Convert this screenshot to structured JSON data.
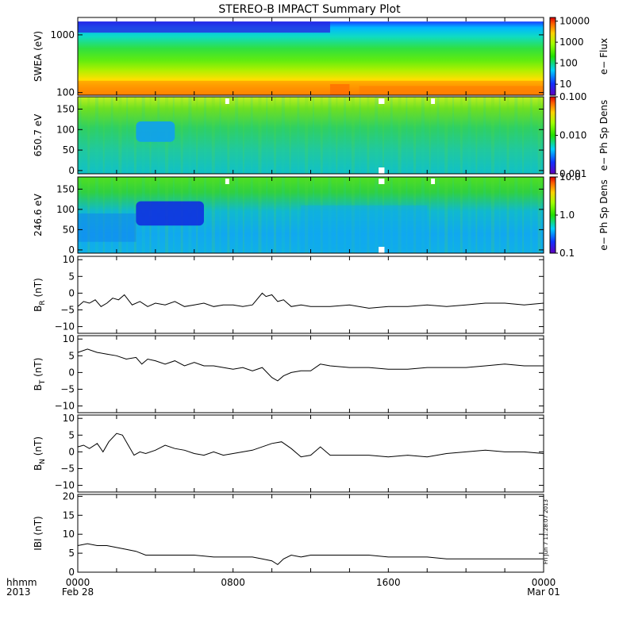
{
  "title": "STEREO-B IMPACT Summary Plot",
  "footer": {
    "left_line1": "hhmm",
    "left_line2": "2013",
    "ticks": [
      {
        "x": 0,
        "line1": "0000",
        "line2": "Feb 28"
      },
      {
        "x": 8,
        "line1": "0800",
        "line2": ""
      },
      {
        "x": 16,
        "line1": "1600",
        "line2": ""
      },
      {
        "x": 24,
        "line1": "0000",
        "line2": "Mar 01"
      }
    ],
    "stamp": "Fri Jun  7 11:28:07 2013"
  },
  "chart_data": [
    {
      "type": "heatmap",
      "ylabel": "SWEA (eV)",
      "yscale": "log",
      "ylim": [
        90,
        2000
      ],
      "yticks": [
        {
          "v": 100,
          "label": "100"
        },
        {
          "v": 1000,
          "label": "1000"
        }
      ],
      "colorbar": {
        "label": "e− Flux",
        "scale": "log",
        "range": [
          3,
          15000
        ],
        "ticks": [
          {
            "v": 10,
            "label": "10"
          },
          {
            "v": 100,
            "label": "100"
          },
          {
            "v": 1000,
            "label": "1000"
          },
          {
            "v": 10000,
            "label": "10000"
          }
        ]
      },
      "features": {
        "high_energy_cutoff_ev": 1700,
        "orange_band_ev": [
          100,
          160
        ],
        "orange_patch_hours": [
          13.0,
          14.0
        ]
      }
    },
    {
      "type": "heatmap",
      "ylabel": "650.7 eV",
      "ylim": [
        -8,
        180
      ],
      "yticks": [
        {
          "v": 0,
          "label": "0"
        },
        {
          "v": 50,
          "label": "50"
        },
        {
          "v": 100,
          "label": "100"
        },
        {
          "v": 150,
          "label": "150"
        }
      ],
      "colorbar": {
        "label": "e− Ph Sp Dens",
        "scale": "log",
        "range": [
          0.001,
          0.1
        ],
        "ticks": [
          {
            "v": 0.001,
            "label": "0.001"
          },
          {
            "v": 0.01,
            "label": "0.010"
          },
          {
            "v": 0.1,
            "label": "0.100"
          }
        ]
      },
      "features": {
        "depletion_hours": [
          3.0,
          5.0
        ],
        "depletion_pitch": [
          70,
          120
        ]
      }
    },
    {
      "type": "heatmap",
      "ylabel": "246.6 eV",
      "ylim": [
        -8,
        180
      ],
      "yticks": [
        {
          "v": 0,
          "label": "0"
        },
        {
          "v": 50,
          "label": "50"
        },
        {
          "v": 100,
          "label": "100"
        },
        {
          "v": 150,
          "label": "150"
        }
      ],
      "colorbar": {
        "label": "e− Ph Sp Dens",
        "scale": "log",
        "range": [
          0.1,
          10
        ],
        "ticks": [
          {
            "v": 0.1,
            "label": "0.1"
          },
          {
            "v": 1,
            "label": "1.0"
          },
          {
            "v": 10,
            "label": "10.0"
          }
        ]
      },
      "features": {
        "depletion_hours": [
          3.0,
          6.5
        ],
        "depletion_pitch": [
          60,
          120
        ]
      }
    },
    {
      "type": "line",
      "ylabel": "B",
      "ylabel_sub": "R",
      "ylabel_unit": "(nT)",
      "ylim": [
        -12,
        11
      ],
      "yticks": [
        {
          "v": -10,
          "label": "−10"
        },
        {
          "v": -5,
          "label": "−5"
        },
        {
          "v": 0,
          "label": "0"
        },
        {
          "v": 5,
          "label": "5"
        },
        {
          "v": 10,
          "label": "10"
        }
      ],
      "x_hours": [
        0,
        0.3,
        0.6,
        0.9,
        1.2,
        1.5,
        1.8,
        2.1,
        2.4,
        2.8,
        3.2,
        3.6,
        4.0,
        4.5,
        5.0,
        5.5,
        6.0,
        6.5,
        7.0,
        7.5,
        8.0,
        8.5,
        9.0,
        9.5,
        9.7,
        10.0,
        10.3,
        10.6,
        11.0,
        11.5,
        12.0,
        13.0,
        14.0,
        15.0,
        16.0,
        17.0,
        18.0,
        19.0,
        20.0,
        21.0,
        22.0,
        23.0,
        24.0
      ],
      "values": [
        -4,
        -2.5,
        -3,
        -2,
        -4,
        -3,
        -1.5,
        -2,
        -0.5,
        -3.5,
        -2.5,
        -4,
        -3,
        -3.5,
        -2.5,
        -4,
        -3.5,
        -3,
        -4,
        -3.5,
        -3.5,
        -4,
        -3.5,
        0,
        -1,
        -0.5,
        -2.5,
        -2,
        -4,
        -3.5,
        -4,
        -4,
        -3.5,
        -4.5,
        -4,
        -4,
        -3.5,
        -4,
        -3.5,
        -3,
        -3,
        -3.5,
        -3
      ]
    },
    {
      "type": "line",
      "ylabel": "B",
      "ylabel_sub": "T",
      "ylabel_unit": "(nT)",
      "ylim": [
        -12,
        11
      ],
      "yticks": [
        {
          "v": -10,
          "label": "−10"
        },
        {
          "v": -5,
          "label": "−5"
        },
        {
          "v": 0,
          "label": "0"
        },
        {
          "v": 5,
          "label": "5"
        },
        {
          "v": 10,
          "label": "10"
        }
      ],
      "x_hours": [
        0,
        0.5,
        1.0,
        1.5,
        2.0,
        2.5,
        3.0,
        3.3,
        3.6,
        4.0,
        4.5,
        5.0,
        5.5,
        6.0,
        6.5,
        7.0,
        7.5,
        8.0,
        8.5,
        9.0,
        9.5,
        10.0,
        10.3,
        10.6,
        11.0,
        11.5,
        12.0,
        12.5,
        13.0,
        14.0,
        15.0,
        16.0,
        17.0,
        18.0,
        19.0,
        20.0,
        21.0,
        22.0,
        23.0,
        24.0
      ],
      "values": [
        6,
        7,
        6,
        5.5,
        5,
        4,
        4.5,
        2.5,
        4,
        3.5,
        2.5,
        3.5,
        2,
        3,
        2,
        2,
        1.5,
        1,
        1.5,
        0.5,
        1.5,
        -1.5,
        -2.5,
        -1,
        0,
        0.5,
        0.5,
        2.5,
        2,
        1.5,
        1.5,
        1,
        1,
        1.5,
        1.5,
        1.5,
        2,
        2.5,
        2,
        2
      ]
    },
    {
      "type": "line",
      "ylabel": "B",
      "ylabel_sub": "N",
      "ylabel_unit": "(nT)",
      "ylim": [
        -12,
        11
      ],
      "yticks": [
        {
          "v": -10,
          "label": "−10"
        },
        {
          "v": -5,
          "label": "−5"
        },
        {
          "v": 0,
          "label": "0"
        },
        {
          "v": 5,
          "label": "5"
        },
        {
          "v": 10,
          "label": "10"
        }
      ],
      "x_hours": [
        0,
        0.3,
        0.6,
        1.0,
        1.3,
        1.6,
        2.0,
        2.3,
        2.6,
        2.9,
        3.2,
        3.5,
        4.0,
        4.5,
        5.0,
        5.5,
        6.0,
        6.5,
        7.0,
        7.5,
        8.0,
        9.0,
        10.0,
        10.5,
        11.0,
        11.5,
        12.0,
        12.5,
        13.0,
        14.0,
        15.0,
        16.0,
        17.0,
        18.0,
        19.0,
        20.0,
        21.0,
        22.0,
        23.0,
        24.0
      ],
      "values": [
        1.5,
        2,
        1,
        2.5,
        0,
        3,
        5.5,
        5,
        2,
        -1,
        0,
        -0.5,
        0.5,
        2,
        1,
        0.5,
        -0.5,
        -1,
        0,
        -1,
        -0.5,
        0.5,
        2.5,
        3,
        1,
        -1.5,
        -1,
        1.5,
        -1,
        -1,
        -1,
        -1.5,
        -1,
        -1.5,
        -0.5,
        0,
        0.5,
        0,
        0,
        -0.5
      ]
    },
    {
      "type": "line",
      "ylabel": "IBI",
      "ylabel_sub": "",
      "ylabel_unit": "(nT)",
      "ylim": [
        0,
        20.5
      ],
      "yticks": [
        {
          "v": 0,
          "label": "0"
        },
        {
          "v": 5,
          "label": "5"
        },
        {
          "v": 10,
          "label": "10"
        },
        {
          "v": 15,
          "label": "15"
        },
        {
          "v": 20,
          "label": "20"
        }
      ],
      "x_hours": [
        0,
        0.5,
        1.0,
        1.5,
        2.0,
        2.5,
        3.0,
        3.5,
        4.0,
        5.0,
        6.0,
        7.0,
        8.0,
        9.0,
        9.5,
        10.0,
        10.3,
        10.6,
        11.0,
        11.5,
        12.0,
        13.0,
        14.0,
        15.0,
        16.0,
        17.0,
        18.0,
        19.0,
        20.0,
        21.0,
        22.0,
        23.0,
        24.0
      ],
      "values": [
        7,
        7.5,
        7,
        7,
        6.5,
        6,
        5.5,
        4.5,
        4.5,
        4.5,
        4.5,
        4,
        4,
        4,
        3.5,
        3,
        2,
        3.5,
        4.5,
        4,
        4.5,
        4.5,
        4.5,
        4.5,
        4,
        4,
        4,
        3.5,
        3.5,
        3.5,
        3.5,
        3.5,
        3.5
      ]
    }
  ]
}
